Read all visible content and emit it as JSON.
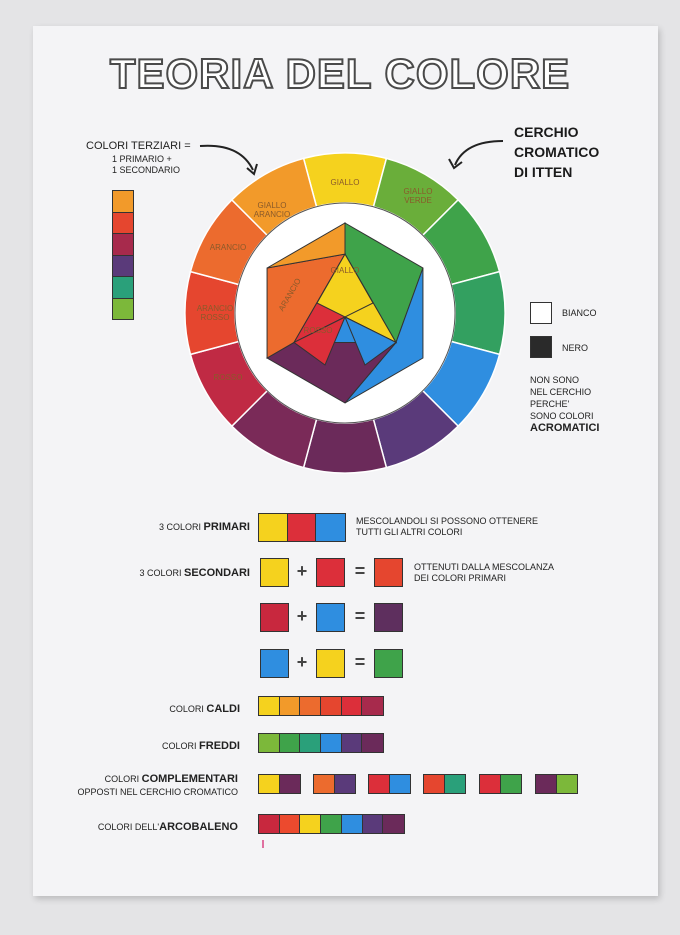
{
  "title": "TEORIA DEL COLORE",
  "wheel_note": {
    "heading": "CERCHIO",
    "line2": "CROMATICO",
    "line3": "DI ITTEN"
  },
  "tertiary_note": {
    "line1": "COLORI TERZIARI =",
    "line2": "1 PRIMARIO +",
    "line3": "1 SECONDARIO"
  },
  "wheel_labels": {
    "giallo": "GIALLO",
    "giallo_arancio": "GIALLO ARANCIO",
    "arancio": "ARANCIO",
    "arancio_rosso": "ARANCIO ROSSO",
    "giallo_verde": "GIALLO VERDE",
    "rosso": "ROSSO",
    "arancio_inner": "ARANCIO"
  },
  "achromatic": {
    "bianco": "BIANCO",
    "nero": "NERO",
    "note1": "NON SONO",
    "note2": "NEL CERCHIO",
    "note3": "PERCHE'",
    "note4": "SONO COLORI",
    "note5": "ACROMATICI"
  },
  "rows": {
    "primari_prefix": "3 COLORI ",
    "primari_bold": "PRIMARI",
    "primari_desc1": "MESCOLANDOLI SI POSSONO OTTENERE",
    "primari_desc2": "TUTTI GLI ALTRI COLORI",
    "secondari_prefix": "3 COLORI ",
    "secondari_bold": "SECONDARI",
    "secondari_desc1": "OTTENUTI DALLA MESCOLANZA",
    "secondari_desc2": "DEI COLORI PRIMARI",
    "plus": "+",
    "equals": "=",
    "caldi_prefix": "COLORI ",
    "caldi_bold": "CALDI",
    "freddi_prefix": "COLORI ",
    "freddi_bold": "FREDDI",
    "compl_prefix": "COLORI ",
    "compl_bold": "COMPLEMENTARI",
    "compl_line2": "OPPOSTI NEL CERCHIO CROMATICO",
    "arco_prefix": "COLORI DELL'",
    "arco_bold": "ARCOBALENO"
  },
  "colors": {
    "yellow": "#f5d21e",
    "orange_yellow": "#f29a2a",
    "orange": "#ec6b2e",
    "red_orange": "#e5462f",
    "red": "#dc2f3a",
    "red_violet": "#a72a4c",
    "violet": "#6b2a5a",
    "blue_violet": "#5a3a7a",
    "blue": "#2f8ee0",
    "blue_green": "#2aa07a",
    "green": "#3fa34a",
    "yellow_green": "#7cb83a"
  }
}
